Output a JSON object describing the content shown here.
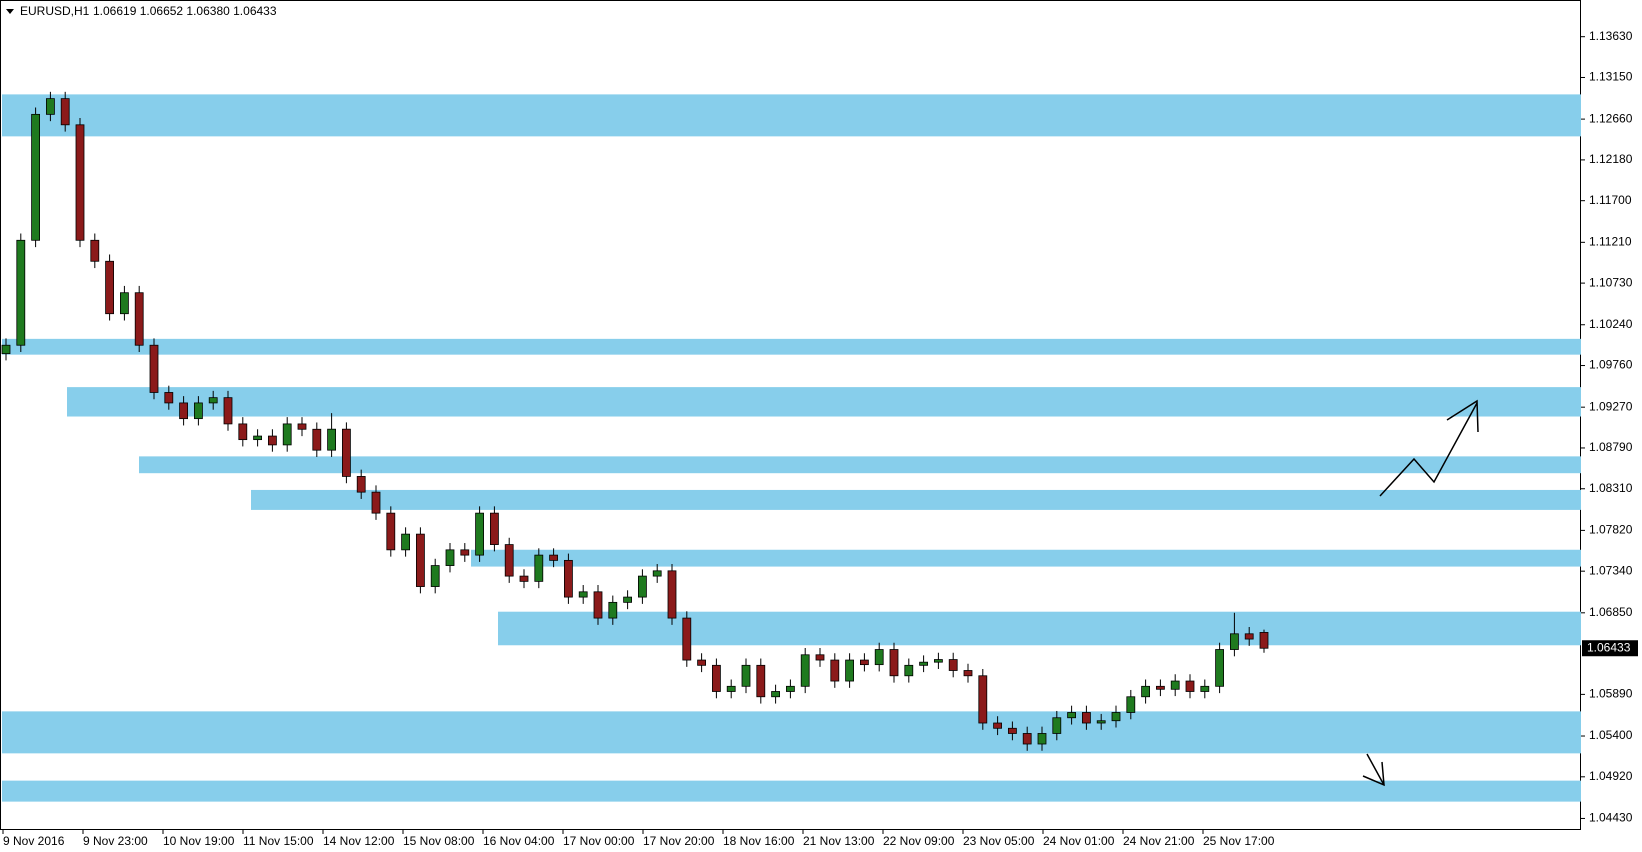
{
  "chart_data": {
    "type": "candlestick",
    "symbol": "EURUSD,H1",
    "ohlc_text": "1.06619 1.06652 1.06380 1.06433",
    "last_price": 1.06433,
    "up_color": "#1f7a1f",
    "down_color": "#8b1a1a",
    "zone_color": "#87ceeb",
    "ylim": [
      1.04294,
      1.1405
    ],
    "yticks": [
      {
        "value": 1.1363,
        "label": "1.13630"
      },
      {
        "value": 1.1315,
        "label": "1.13150"
      },
      {
        "value": 1.1266,
        "label": "1.12660"
      },
      {
        "value": 1.1218,
        "label": "1.12180"
      },
      {
        "value": 1.117,
        "label": "1.11700"
      },
      {
        "value": 1.1121,
        "label": "1.11210"
      },
      {
        "value": 1.1073,
        "label": "1.10730"
      },
      {
        "value": 1.1024,
        "label": "1.10240"
      },
      {
        "value": 1.0976,
        "label": "1.09760"
      },
      {
        "value": 1.0927,
        "label": "1.09270"
      },
      {
        "value": 1.0879,
        "label": "1.08790"
      },
      {
        "value": 1.0831,
        "label": "1.08310"
      },
      {
        "value": 1.0782,
        "label": "1.07820"
      },
      {
        "value": 1.0734,
        "label": "1.07340"
      },
      {
        "value": 1.0685,
        "label": "1.06850"
      },
      {
        "value": 1.0589,
        "label": "1.05890"
      },
      {
        "value": 1.054,
        "label": "1.05400"
      },
      {
        "value": 1.0492,
        "label": "1.04920"
      },
      {
        "value": 1.0443,
        "label": "1.04430"
      }
    ],
    "categories": [
      "9 Nov 2016",
      "9 Nov 23:00",
      "10 Nov 19:00",
      "11 Nov 15:00",
      "14 Nov 12:00",
      "15 Nov 08:00",
      "16 Nov 04:00",
      "17 Nov 00:00",
      "17 Nov 20:00",
      "18 Nov 16:00",
      "21 Nov 13:00",
      "22 Nov 09:00",
      "23 Nov 05:00",
      "24 Nov 01:00",
      "24 Nov 21:00",
      "25 Nov 17:00"
    ],
    "zones": [
      {
        "high": 1.12951,
        "low": 1.12457
      },
      {
        "high": 1.10074,
        "low": 1.09888
      },
      {
        "high": 1.09506,
        "low": 1.0916
      },
      {
        "high": 1.08691,
        "low": 1.08493
      },
      {
        "high": 1.08296,
        "low": 1.08061
      },
      {
        "high": 1.07592,
        "low": 1.07394
      },
      {
        "high": 1.06863,
        "low": 1.06468
      },
      {
        "high": 1.0569,
        "low": 1.05196
      },
      {
        "high": 1.04875,
        "low": 1.04628
      }
    ],
    "open": [
      1.099,
      1.09999,
      1.11234,
      1.12716,
      1.12901,
      1.12593,
      1.11234,
      1.10987,
      1.1037,
      1.10617,
      1.09999,
      1.09443,
      1.0932,
      1.09135,
      1.0932,
      1.09382,
      1.09073,
      1.08888,
      1.0893,
      1.08826,
      1.09073,
      1.0901,
      1.08764,
      1.09011,
      1.08455,
      1.0827,
      1.08023,
      1.07591,
      1.07776,
      1.07159,
      1.07406,
      1.07591,
      1.07529,
      1.08023,
      1.07653,
      1.07282,
      1.0722,
      1.07529,
      1.07467,
      1.07035,
      1.07097,
      1.06788,
      1.06973,
      1.07035,
      1.07282,
      1.07344,
      1.06788,
      1.06294,
      1.06232,
      1.05924,
      1.05985,
      1.06232,
      1.05862,
      1.05924,
      1.05985,
      1.06356,
      1.06294,
      1.06047,
      1.06294,
      1.0624,
      1.06418,
      1.06109,
      1.06232,
      1.06269,
      1.063,
      1.06171,
      1.06109,
      1.05553,
      1.05491,
      1.0543,
      1.05306,
      1.0543,
      1.05615,
      1.05677,
      1.05553,
      1.0558,
      1.05677,
      1.05862,
      1.05985,
      1.0595,
      1.06047,
      1.05924,
      1.05985,
      1.06418,
      1.06603,
      1.06619
    ],
    "high": [
      1.10079,
      1.11314,
      1.12796,
      1.12981,
      1.12981,
      1.12673,
      1.11314,
      1.11067,
      1.10697,
      1.10697,
      1.10079,
      1.09523,
      1.094,
      1.094,
      1.09462,
      1.09462,
      1.09153,
      1.0901,
      1.0901,
      1.09153,
      1.09153,
      1.0909,
      1.092,
      1.09091,
      1.08535,
      1.0835,
      1.08103,
      1.07856,
      1.07856,
      1.07486,
      1.07671,
      1.07671,
      1.08103,
      1.08103,
      1.07733,
      1.07362,
      1.07609,
      1.07609,
      1.07547,
      1.07177,
      1.07177,
      1.07053,
      1.07115,
      1.07362,
      1.07424,
      1.07424,
      1.06868,
      1.06374,
      1.06312,
      1.06065,
      1.06312,
      1.06312,
      1.06004,
      1.06065,
      1.06436,
      1.06436,
      1.06374,
      1.06374,
      1.06374,
      1.06498,
      1.06498,
      1.06312,
      1.06349,
      1.0638,
      1.0638,
      1.06251,
      1.06189,
      1.05633,
      1.05571,
      1.0551,
      1.0551,
      1.05695,
      1.05757,
      1.05757,
      1.0566,
      1.05757,
      1.05942,
      1.06065,
      1.06065,
      1.06127,
      1.06127,
      1.06065,
      1.06498,
      1.0685,
      1.06683,
      1.06652
    ],
    "low": [
      1.0982,
      1.09919,
      1.11154,
      1.12636,
      1.12513,
      1.11154,
      1.10907,
      1.1029,
      1.1029,
      1.09919,
      1.09363,
      1.0924,
      1.09055,
      1.09055,
      1.0924,
      1.08993,
      1.08808,
      1.08808,
      1.08746,
      1.08746,
      1.0893,
      1.08684,
      1.08684,
      1.08375,
      1.0819,
      1.07943,
      1.07511,
      1.07511,
      1.07079,
      1.07079,
      1.07326,
      1.07449,
      1.07449,
      1.07573,
      1.07202,
      1.0714,
      1.0714,
      1.07387,
      1.06955,
      1.06955,
      1.06708,
      1.06708,
      1.06893,
      1.06955,
      1.07202,
      1.06708,
      1.06214,
      1.06152,
      1.05844,
      1.05844,
      1.05905,
      1.05782,
      1.05782,
      1.05844,
      1.05905,
      1.06214,
      1.05967,
      1.05967,
      1.0616,
      1.0616,
      1.06029,
      1.06029,
      1.06152,
      1.06189,
      1.06091,
      1.06029,
      1.05473,
      1.05411,
      1.0535,
      1.05226,
      1.05226,
      1.0535,
      1.05535,
      1.05473,
      1.05473,
      1.055,
      1.05597,
      1.05782,
      1.0587,
      1.0587,
      1.05844,
      1.05844,
      1.05905,
      1.06338,
      1.06461,
      1.0638
    ],
    "close": [
      1.09999,
      1.11234,
      1.12716,
      1.12901,
      1.12593,
      1.11234,
      1.10987,
      1.1037,
      1.10617,
      1.09999,
      1.09443,
      1.0932,
      1.09135,
      1.0932,
      1.09382,
      1.09073,
      1.08888,
      1.0893,
      1.08826,
      1.09073,
      1.0901,
      1.08764,
      1.09011,
      1.08455,
      1.0827,
      1.08023,
      1.07591,
      1.07776,
      1.07159,
      1.07406,
      1.07591,
      1.07529,
      1.08023,
      1.07653,
      1.07282,
      1.0722,
      1.07529,
      1.07467,
      1.07035,
      1.07097,
      1.06788,
      1.06973,
      1.07035,
      1.07282,
      1.07344,
      1.06788,
      1.06294,
      1.06232,
      1.05924,
      1.05985,
      1.06232,
      1.05862,
      1.05924,
      1.05985,
      1.06356,
      1.06294,
      1.06047,
      1.06294,
      1.0624,
      1.06418,
      1.06109,
      1.06232,
      1.06269,
      1.063,
      1.06171,
      1.06109,
      1.05553,
      1.05491,
      1.0543,
      1.05306,
      1.0543,
      1.05615,
      1.05677,
      1.05553,
      1.0558,
      1.05677,
      1.05862,
      1.05985,
      1.0595,
      1.06047,
      1.05924,
      1.05985,
      1.06418,
      1.06603,
      1.06541,
      1.06433
    ]
  }
}
